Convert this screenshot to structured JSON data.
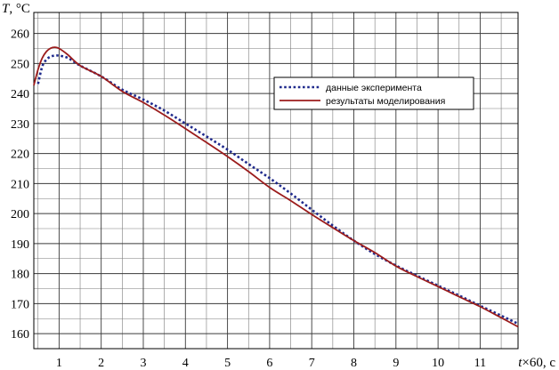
{
  "chart_data": {
    "type": "line",
    "y_title": {
      "var": "T",
      "unit": ", °C"
    },
    "x_title": {
      "var": "t",
      "rest": "×60, с"
    },
    "xlim": [
      0.4,
      11.9
    ],
    "ylim": [
      155,
      267
    ],
    "x_ticks": [
      1,
      2,
      3,
      4,
      5,
      6,
      7,
      8,
      9,
      10,
      11
    ],
    "y_ticks": [
      160,
      170,
      180,
      190,
      200,
      210,
      220,
      230,
      240,
      250,
      260
    ],
    "grid": true,
    "legend_position": "upper right",
    "series": [
      {
        "name": "данные эксперимента",
        "color": "#1f2a8c",
        "style": "dotted",
        "points": [
          [
            0.5,
            243.2
          ],
          [
            0.6,
            249.0
          ],
          [
            0.7,
            251.3
          ],
          [
            0.8,
            252.3
          ],
          [
            0.9,
            252.6
          ],
          [
            1.0,
            252.6
          ],
          [
            1.2,
            251.9
          ],
          [
            1.5,
            249.3
          ],
          [
            2.0,
            245.7
          ],
          [
            2.5,
            241.3
          ],
          [
            3.0,
            238.0
          ],
          [
            3.5,
            234.3
          ],
          [
            4.0,
            230.0
          ],
          [
            4.5,
            225.7
          ],
          [
            5.0,
            221.3
          ],
          [
            5.5,
            216.5
          ],
          [
            6.0,
            211.8
          ],
          [
            6.5,
            206.7
          ],
          [
            7.0,
            201.3
          ],
          [
            7.5,
            196.0
          ],
          [
            8.0,
            191.0
          ],
          [
            8.5,
            186.5
          ],
          [
            9.0,
            182.7
          ],
          [
            9.5,
            179.3
          ],
          [
            10.0,
            176.0
          ],
          [
            10.5,
            172.7
          ],
          [
            11.0,
            169.3
          ],
          [
            11.5,
            166.0
          ],
          [
            11.9,
            163.3
          ]
        ]
      },
      {
        "name": "результаты моделирования",
        "color": "#9b1c1c",
        "style": "solid",
        "points": [
          [
            0.4,
            242.7
          ],
          [
            0.5,
            248.0
          ],
          [
            0.6,
            251.8
          ],
          [
            0.7,
            254.0
          ],
          [
            0.8,
            255.1
          ],
          [
            0.9,
            255.4
          ],
          [
            1.0,
            255.0
          ],
          [
            1.2,
            253.0
          ],
          [
            1.5,
            249.3
          ],
          [
            2.0,
            245.7
          ],
          [
            2.5,
            240.7
          ],
          [
            3.0,
            237.0
          ],
          [
            3.5,
            232.8
          ],
          [
            4.0,
            228.3
          ],
          [
            4.5,
            223.7
          ],
          [
            5.0,
            219.0
          ],
          [
            5.5,
            214.0
          ],
          [
            6.0,
            208.7
          ],
          [
            6.5,
            204.3
          ],
          [
            7.0,
            199.7
          ],
          [
            7.5,
            195.3
          ],
          [
            8.0,
            191.0
          ],
          [
            8.5,
            187.0
          ],
          [
            9.0,
            182.5
          ],
          [
            9.5,
            179.0
          ],
          [
            10.0,
            175.7
          ],
          [
            10.5,
            172.3
          ],
          [
            11.0,
            169.0
          ],
          [
            11.5,
            165.3
          ],
          [
            11.9,
            162.3
          ]
        ]
      }
    ]
  }
}
